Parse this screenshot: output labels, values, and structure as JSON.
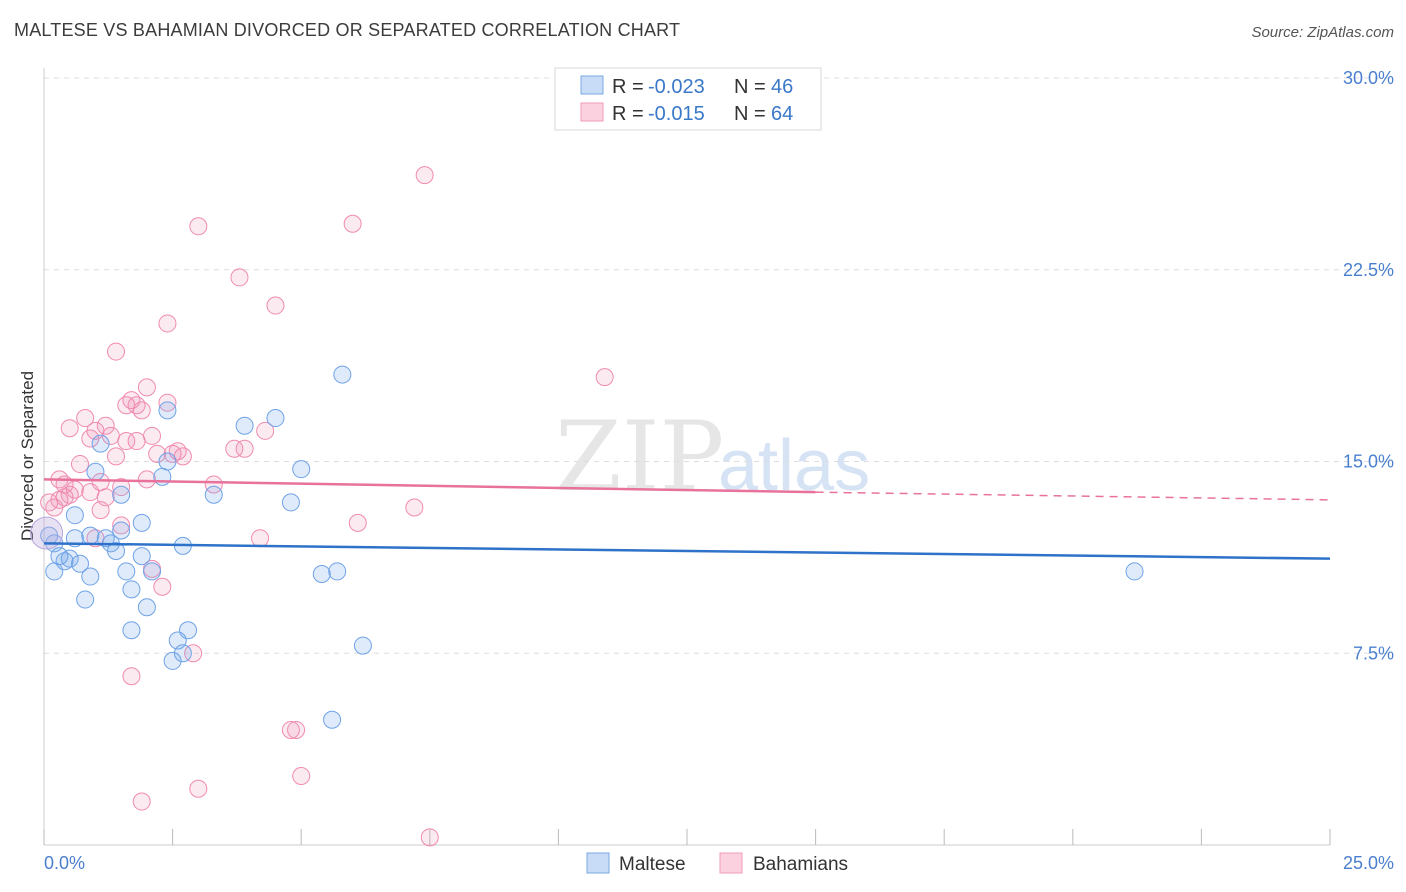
{
  "title": "MALTESE VS BAHAMIAN DIVORCED OR SEPARATED CORRELATION CHART",
  "source": "Source: ZipAtlas.com",
  "watermark": {
    "zip": "ZIP",
    "atlas": "atlas"
  },
  "colors": {
    "maltese": "#6fa3e8",
    "bahamian": "#f08bb0",
    "maltese_line": "#2f72c9",
    "bahamian_line": "#e8729c"
  },
  "legend": {
    "rows": [
      {
        "r_label": "R =",
        "r_value": "-0.023",
        "n_label": "N =",
        "n_value": "46"
      },
      {
        "r_label": "R =",
        "r_value": "-0.015",
        "n_label": "N =",
        "n_value": "64"
      }
    ]
  },
  "bottom_legend": [
    "Maltese",
    "Bahamians"
  ],
  "chart_data": {
    "type": "scatter",
    "xlabel": "",
    "ylabel": "Divorced or Separated",
    "xlim": [
      0,
      25
    ],
    "ylim": [
      0,
      30
    ],
    "x_tick_labels": [
      "0.0%",
      "25.0%"
    ],
    "y_ticks": [
      7.5,
      15.0,
      22.5,
      30.0
    ],
    "y_tick_labels": [
      "7.5%",
      "15.0%",
      "22.5%",
      "30.0%"
    ],
    "series": [
      {
        "name": "Maltese",
        "trend": {
          "x": [
            0,
            25
          ],
          "y": [
            11.8,
            11.2
          ]
        },
        "points": [
          [
            0.1,
            12.1
          ],
          [
            0.2,
            11.8
          ],
          [
            0.2,
            10.7
          ],
          [
            0.3,
            11.3
          ],
          [
            0.4,
            11.1
          ],
          [
            0.5,
            11.2
          ],
          [
            0.6,
            12.9
          ],
          [
            0.6,
            12.0
          ],
          [
            0.7,
            11.0
          ],
          [
            0.8,
            9.6
          ],
          [
            0.9,
            10.5
          ],
          [
            0.9,
            12.1
          ],
          [
            1.0,
            14.6
          ],
          [
            1.1,
            15.7
          ],
          [
            1.2,
            12.0
          ],
          [
            1.3,
            11.8
          ],
          [
            1.4,
            11.5
          ],
          [
            1.5,
            12.3
          ],
          [
            1.5,
            13.7
          ],
          [
            1.6,
            10.7
          ],
          [
            1.7,
            8.4
          ],
          [
            1.7,
            10.0
          ],
          [
            1.9,
            12.6
          ],
          [
            1.9,
            11.3
          ],
          [
            2.0,
            9.3
          ],
          [
            2.1,
            10.7
          ],
          [
            2.3,
            14.4
          ],
          [
            2.4,
            15.0
          ],
          [
            2.4,
            17.0
          ],
          [
            2.5,
            7.2
          ],
          [
            2.6,
            8.0
          ],
          [
            2.7,
            7.5
          ],
          [
            2.7,
            11.7
          ],
          [
            2.8,
            8.4
          ],
          [
            3.3,
            13.7
          ],
          [
            3.9,
            16.4
          ],
          [
            4.5,
            16.7
          ],
          [
            4.8,
            13.4
          ],
          [
            5.0,
            14.7
          ],
          [
            5.4,
            10.6
          ],
          [
            5.6,
            4.9
          ],
          [
            5.7,
            10.7
          ],
          [
            5.8,
            18.4
          ],
          [
            6.2,
            7.8
          ],
          [
            21.2,
            10.7
          ]
        ]
      },
      {
        "name": "Bahamians",
        "trend": {
          "x": [
            0,
            15
          ],
          "y": [
            14.3,
            13.8
          ],
          "dashed": {
            "x": [
              15,
              25
            ],
            "y": [
              13.8,
              13.5
            ]
          }
        },
        "points": [
          [
            0.1,
            13.4
          ],
          [
            0.2,
            13.2
          ],
          [
            0.3,
            13.5
          ],
          [
            0.3,
            14.3
          ],
          [
            0.4,
            14.1
          ],
          [
            0.4,
            13.6
          ],
          [
            0.5,
            16.3
          ],
          [
            0.5,
            13.7
          ],
          [
            0.6,
            13.9
          ],
          [
            0.7,
            14.9
          ],
          [
            0.8,
            16.7
          ],
          [
            0.9,
            13.8
          ],
          [
            0.9,
            15.9
          ],
          [
            1.0,
            12.0
          ],
          [
            1.0,
            16.2
          ],
          [
            1.1,
            14.2
          ],
          [
            1.1,
            13.1
          ],
          [
            1.2,
            16.4
          ],
          [
            1.2,
            13.6
          ],
          [
            1.3,
            16.0
          ],
          [
            1.4,
            19.3
          ],
          [
            1.4,
            15.2
          ],
          [
            1.5,
            12.5
          ],
          [
            1.5,
            14.0
          ],
          [
            1.6,
            17.2
          ],
          [
            1.6,
            15.8
          ],
          [
            1.7,
            6.6
          ],
          [
            1.7,
            17.4
          ],
          [
            1.8,
            17.2
          ],
          [
            1.8,
            15.8
          ],
          [
            1.9,
            17.0
          ],
          [
            1.9,
            1.7
          ],
          [
            2.0,
            14.3
          ],
          [
            2.0,
            17.9
          ],
          [
            2.1,
            10.8
          ],
          [
            2.1,
            16.0
          ],
          [
            2.2,
            15.3
          ],
          [
            2.3,
            10.1
          ],
          [
            2.4,
            17.3
          ],
          [
            2.4,
            20.4
          ],
          [
            2.5,
            15.3
          ],
          [
            2.6,
            15.4
          ],
          [
            2.7,
            15.2
          ],
          [
            2.9,
            7.5
          ],
          [
            3.0,
            24.2
          ],
          [
            3.0,
            2.2
          ],
          [
            3.3,
            14.1
          ],
          [
            3.7,
            15.5
          ],
          [
            3.8,
            22.2
          ],
          [
            3.9,
            15.5
          ],
          [
            4.2,
            12.0
          ],
          [
            4.3,
            16.2
          ],
          [
            4.5,
            21.1
          ],
          [
            4.8,
            4.5
          ],
          [
            4.9,
            4.5
          ],
          [
            5.0,
            2.7
          ],
          [
            6.0,
            24.3
          ],
          [
            6.1,
            12.6
          ],
          [
            7.2,
            13.2
          ],
          [
            7.4,
            26.2
          ],
          [
            7.5,
            0.3
          ],
          [
            10.9,
            18.3
          ]
        ]
      }
    ]
  }
}
